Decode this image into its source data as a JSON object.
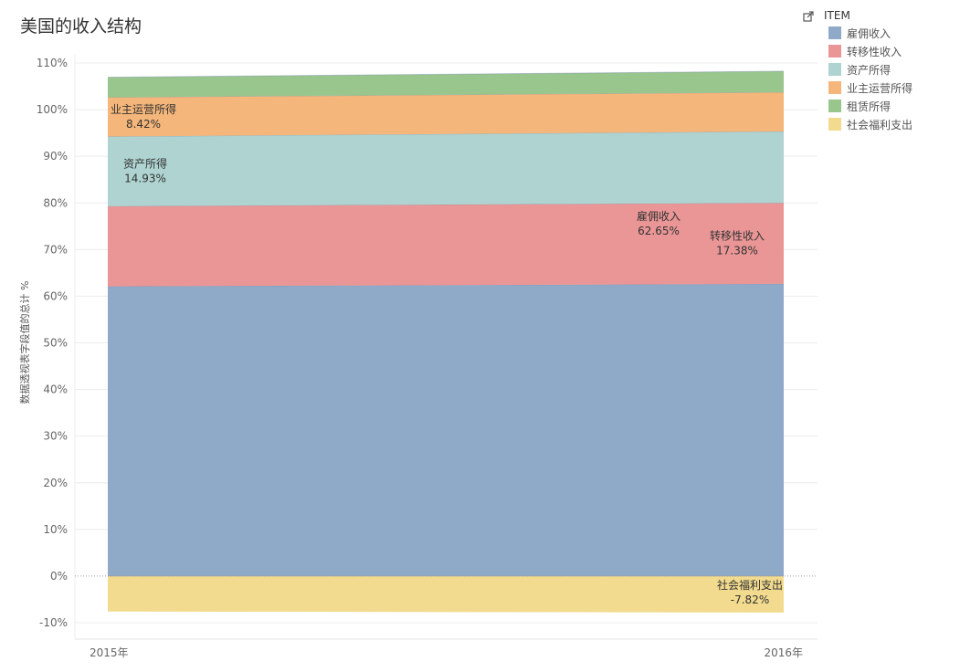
{
  "title": "美国的收入结构",
  "legend": {
    "title": "ITEM",
    "items": [
      {
        "label": "雇佣收入",
        "color": "#8fa9c8"
      },
      {
        "label": "转移性收入",
        "color": "#ea9696"
      },
      {
        "label": "资产所得",
        "color": "#aed3d0"
      },
      {
        "label": "业主运营所得",
        "color": "#f4b67a"
      },
      {
        "label": "租赁所得",
        "color": "#99c68d"
      },
      {
        "label": "社会福利支出",
        "color": "#f2db8e"
      }
    ]
  },
  "chart_data": {
    "type": "area",
    "stacked": true,
    "x": [
      "2015年",
      "2016年"
    ],
    "ylabel": "数据透视表字段值的总计 %",
    "ylim": [
      -10,
      110
    ],
    "yticks": [
      "-10%",
      "0%",
      "10%",
      "20%",
      "30%",
      "40%",
      "50%",
      "60%",
      "70%",
      "80%",
      "90%",
      "100%",
      "110%"
    ],
    "grid": true,
    "legend_position": "right",
    "series": [
      {
        "name": "雇佣收入",
        "values": [
          62.1,
          62.65
        ],
        "color": "#8fa9c8"
      },
      {
        "name": "转移性收入",
        "values": [
          17.2,
          17.38
        ],
        "color": "#ea9696"
      },
      {
        "name": "资产所得",
        "values": [
          14.93,
          15.3
        ],
        "color": "#aed3d0"
      },
      {
        "name": "业主运营所得",
        "values": [
          8.42,
          8.4
        ],
        "color": "#f4b67a"
      },
      {
        "name": "租赁所得",
        "values": [
          4.3,
          4.5
        ],
        "color": "#99c68d"
      },
      {
        "name": "社会福利支出",
        "values": [
          -7.6,
          -7.82
        ],
        "color": "#f2db8e"
      }
    ],
    "annotations": [
      {
        "series": "雇佣收入",
        "label": "雇佣收入",
        "value": "62.65%"
      },
      {
        "series": "转移性收入",
        "label": "转移性收入",
        "value": "17.38%"
      },
      {
        "series": "资产所得",
        "label": "资产所得",
        "value": "14.93%"
      },
      {
        "series": "业主运营所得",
        "label": "业主运营所得",
        "value": "8.42%"
      },
      {
        "series": "社会福利支出",
        "label": "社会福利支出",
        "value": "-7.82%"
      }
    ]
  }
}
